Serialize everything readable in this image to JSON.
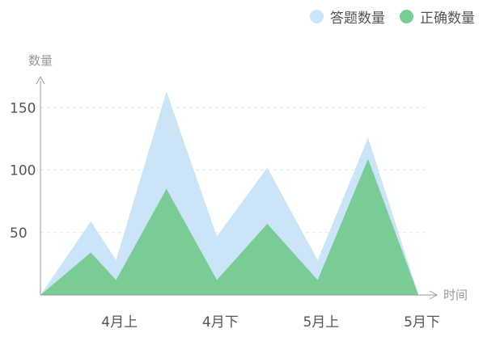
{
  "chart_data": {
    "type": "area",
    "ylabel": "数量",
    "xlabel": "时间",
    "ylim": [
      0,
      175
    ],
    "yticks": [
      50,
      100,
      150
    ],
    "xtick_labels": [
      "4月上",
      "4月下",
      "5月上",
      "5月下"
    ],
    "xtick_positions": [
      0.83,
      2.83,
      4.83,
      6.83
    ],
    "x": [
      0,
      1,
      1.5,
      2.5,
      3.5,
      4.5,
      5.5,
      6.5,
      7.5
    ],
    "series": [
      {
        "name": "答题数量",
        "color": "#cce4f7",
        "values": [
          0,
          59,
          28,
          163,
          47,
          102,
          28,
          126,
          0
        ]
      },
      {
        "name": "正确数量",
        "color": "#79cc96",
        "values": [
          0,
          34,
          12,
          85,
          12,
          57,
          12,
          109,
          0
        ]
      }
    ]
  },
  "legend": [
    {
      "label": "答题数量",
      "color": "#cce4f7"
    },
    {
      "label": "正确数量",
      "color": "#79cc96"
    }
  ]
}
